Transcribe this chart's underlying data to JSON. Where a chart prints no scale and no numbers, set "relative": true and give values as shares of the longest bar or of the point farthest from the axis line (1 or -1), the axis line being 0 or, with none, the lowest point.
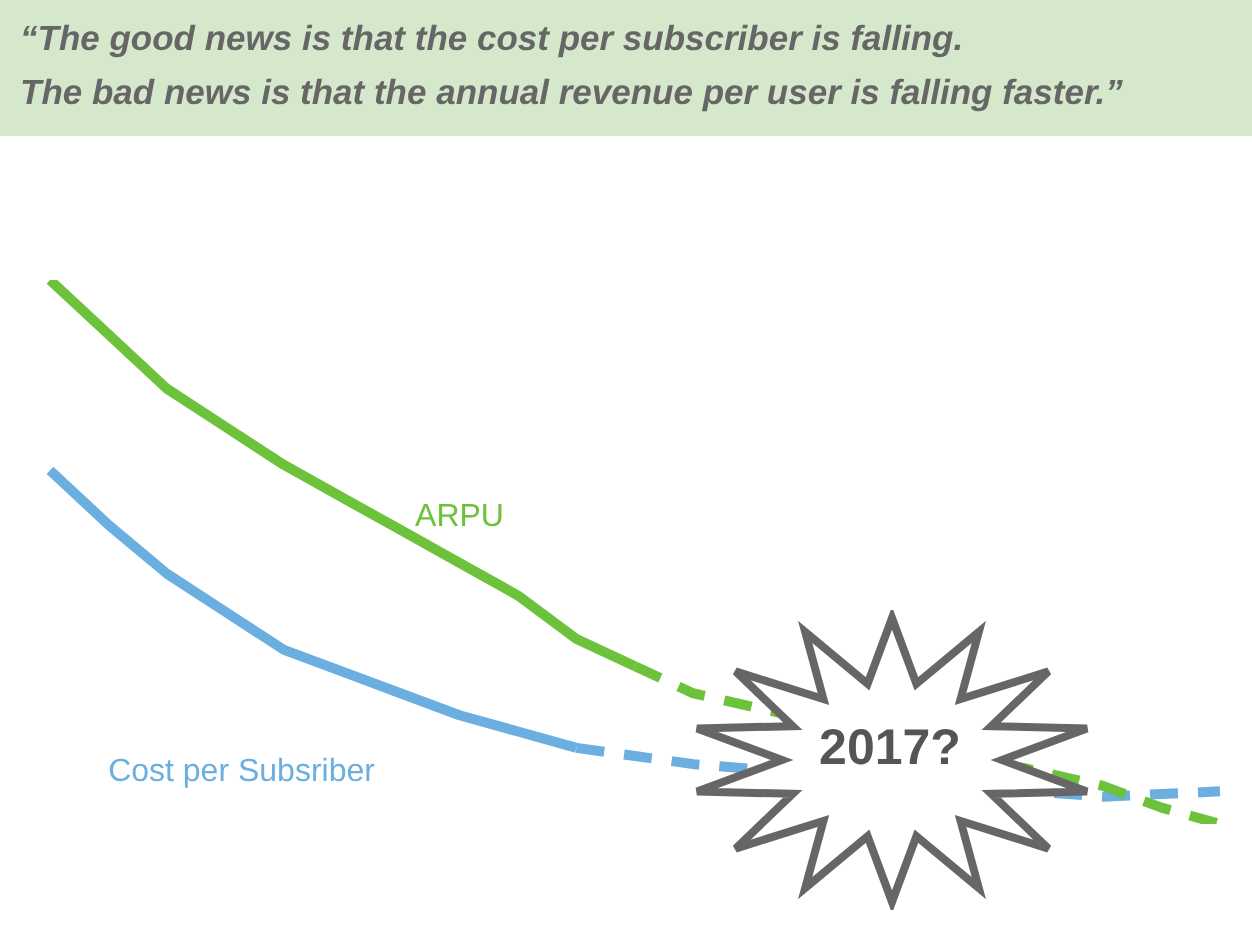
{
  "chart_data": {
    "type": "line",
    "title": "“The good news is that the cost per subscriber is falling.\nThe bad news is that the annual revenue per user is falling faster.”",
    "relative": true,
    "tick_labels": false,
    "grid": false,
    "legend": false,
    "marker": "none",
    "annotations": [
      "2017?"
    ],
    "categories": [
      null,
      null,
      null,
      null,
      null,
      null,
      null,
      null,
      null,
      null,
      null,
      null,
      null,
      null,
      null,
      null,
      null,
      null,
      null,
      null,
      null
    ],
    "series": [
      {
        "name": "ARPU",
        "color": "#6cc23a",
        "line_style": "solid",
        "values": [
          1.0,
          0.9,
          0.8,
          0.73,
          0.66,
          0.6,
          0.54,
          0.48,
          0.42,
          0.34,
          0.29,
          null,
          null,
          null,
          null,
          null,
          null,
          null,
          null,
          null,
          null
        ]
      },
      {
        "color": "#6cc23a",
        "line_style": "dashed",
        "values": [
          null,
          null,
          null,
          null,
          null,
          null,
          null,
          null,
          null,
          null,
          0.29,
          0.24,
          null,
          null,
          null,
          null,
          null,
          null,
          0.07,
          0.03,
          0
        ]
      },
      {
        "name": "Cost per Subsriber",
        "color": "#6aafe0",
        "line_style": "solid",
        "values": [
          0.65,
          0.55,
          0.46,
          0.39,
          0.32,
          0.28,
          0.24,
          0.2,
          0.17,
          0.14,
          null,
          null,
          null,
          null,
          null,
          null,
          null,
          null,
          null,
          null,
          null
        ]
      },
      {
        "color": "#6aafe0",
        "line_style": "dashed",
        "values": [
          null,
          null,
          null,
          null,
          null,
          null,
          null,
          null,
          null,
          0.14,
          0.125,
          0.11,
          null,
          null,
          null,
          null,
          null,
          null,
          0.05,
          0.055,
          0.06
        ]
      }
    ]
  }
}
